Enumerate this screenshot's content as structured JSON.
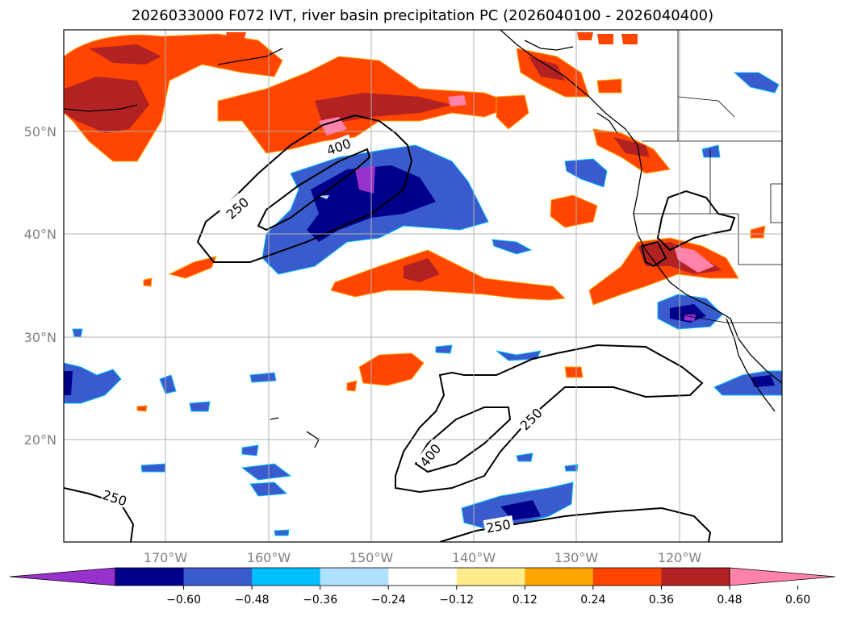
{
  "title": "2026033000 F072 IVT, river basin precipitation PC (2026040100 - 2026040400)",
  "lon_ticks": [
    "170°W",
    "160°W",
    "150°W",
    "140°W",
    "130°W",
    "120°W"
  ],
  "lat_ticks": [
    "50°N",
    "40°N",
    "30°N",
    "20°N"
  ],
  "colorbar": {
    "ticks": [
      "−0.60",
      "−0.48",
      "−0.36",
      "−0.24",
      "−0.12",
      "0.12",
      "0.24",
      "0.36",
      "0.48",
      "0.60"
    ],
    "colors": [
      "#9932cc",
      "#00008b",
      "#3a5bcd",
      "#00bfff",
      "#b0e2ff",
      "#ffffff",
      "#ffec8b",
      "#ffa500",
      "#ff4500",
      "#b22222",
      "#ff82ab"
    ]
  },
  "contour_labels": {
    "l250_a": "250",
    "l400_a": "400",
    "l250_b": "250",
    "l400_b": "400",
    "l250_c": "250",
    "l250_d": "250"
  },
  "chart_data": {
    "type": "map",
    "fields": [
      "IVT contours (250, 400)",
      "river basin precipitation PC (shaded)"
    ],
    "contour_levels": [
      250,
      400
    ],
    "extent": {
      "lon": [
        -180,
        -110
      ],
      "lat": [
        10,
        60
      ]
    }
  }
}
